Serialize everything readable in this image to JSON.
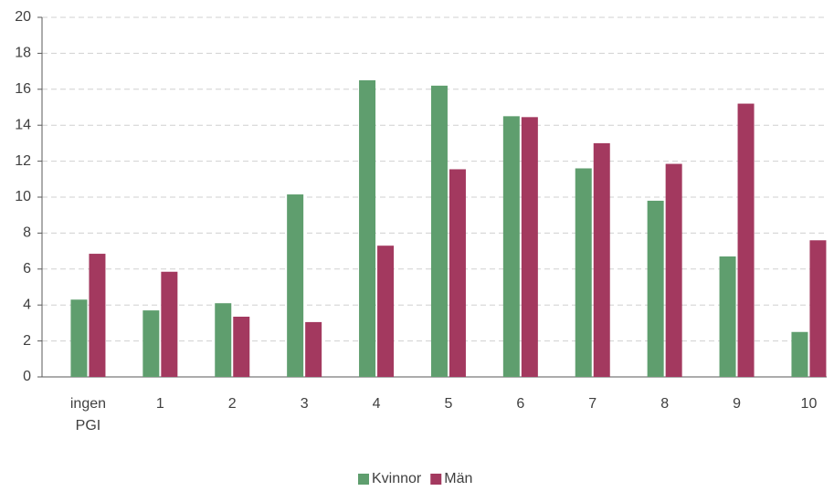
{
  "chart_data": {
    "type": "bar",
    "categories": [
      "ingen PGI",
      "1",
      "2",
      "3",
      "4",
      "5",
      "6",
      "7",
      "8",
      "9",
      "10"
    ],
    "series": [
      {
        "name": "Kvinnor",
        "color": "#5f9e6e",
        "values": [
          4.3,
          3.7,
          4.1,
          10.15,
          16.5,
          16.2,
          14.5,
          11.6,
          9.8,
          6.7,
          2.5
        ]
      },
      {
        "name": "Män",
        "color": "#a3395f",
        "values": [
          6.85,
          5.85,
          3.35,
          3.05,
          7.3,
          11.55,
          14.45,
          13,
          11.85,
          15.2,
          7.6
        ]
      }
    ],
    "ylim": [
      0,
      20
    ],
    "yticks": [
      0,
      2,
      4,
      6,
      8,
      10,
      12,
      14,
      16,
      18,
      20
    ],
    "grid": true,
    "legend": "bottom"
  }
}
